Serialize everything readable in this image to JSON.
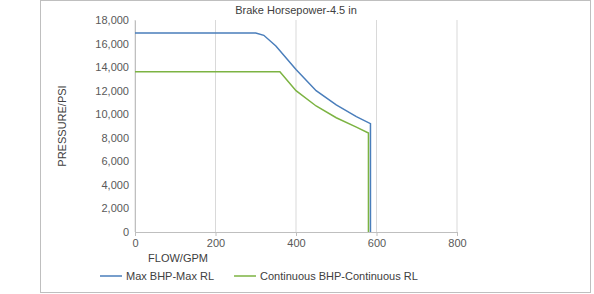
{
  "chart_data": {
    "type": "line",
    "title": "Brake Horsepower-4.5 in",
    "x_label": "FLOW/GPM",
    "y_label": "PRESSURE/PSI",
    "xlim": [
      0,
      800
    ],
    "xticks": [
      0,
      200,
      400,
      600,
      800
    ],
    "ylim": [
      0,
      18000
    ],
    "yticks": [
      0,
      {
        "value": 2000,
        "label": "2,000"
      },
      {
        "value": 4000,
        "label": "4,000"
      },
      {
        "value": 6000,
        "label": "6,000"
      },
      {
        "value": 8000,
        "label": "8,000"
      },
      {
        "value": 10000,
        "label": "10,000"
      },
      {
        "value": 12000,
        "label": "12,000"
      },
      {
        "value": 14000,
        "label": "14,000"
      },
      {
        "value": 16000,
        "label": "16,000"
      },
      {
        "value": 18000,
        "label": "18,000"
      }
    ],
    "grid": "x",
    "legend": "bottom",
    "series": [
      {
        "name": "Max BHP-Max RL",
        "color": "#4a7ebb",
        "x": [
          0,
          300,
          320,
          350,
          400,
          450,
          500,
          550,
          585,
          585
        ],
        "values": [
          16900,
          16900,
          16700,
          15800,
          13800,
          12000,
          10800,
          9800,
          9200,
          0
        ]
      },
      {
        "name": "Continuous BHP-Continuous RL",
        "color": "#7cb342",
        "x": [
          0,
          360,
          380,
          400,
          450,
          500,
          550,
          580,
          580
        ],
        "values": [
          13600,
          13600,
          12800,
          12000,
          10700,
          9700,
          8900,
          8400,
          0
        ]
      }
    ]
  }
}
